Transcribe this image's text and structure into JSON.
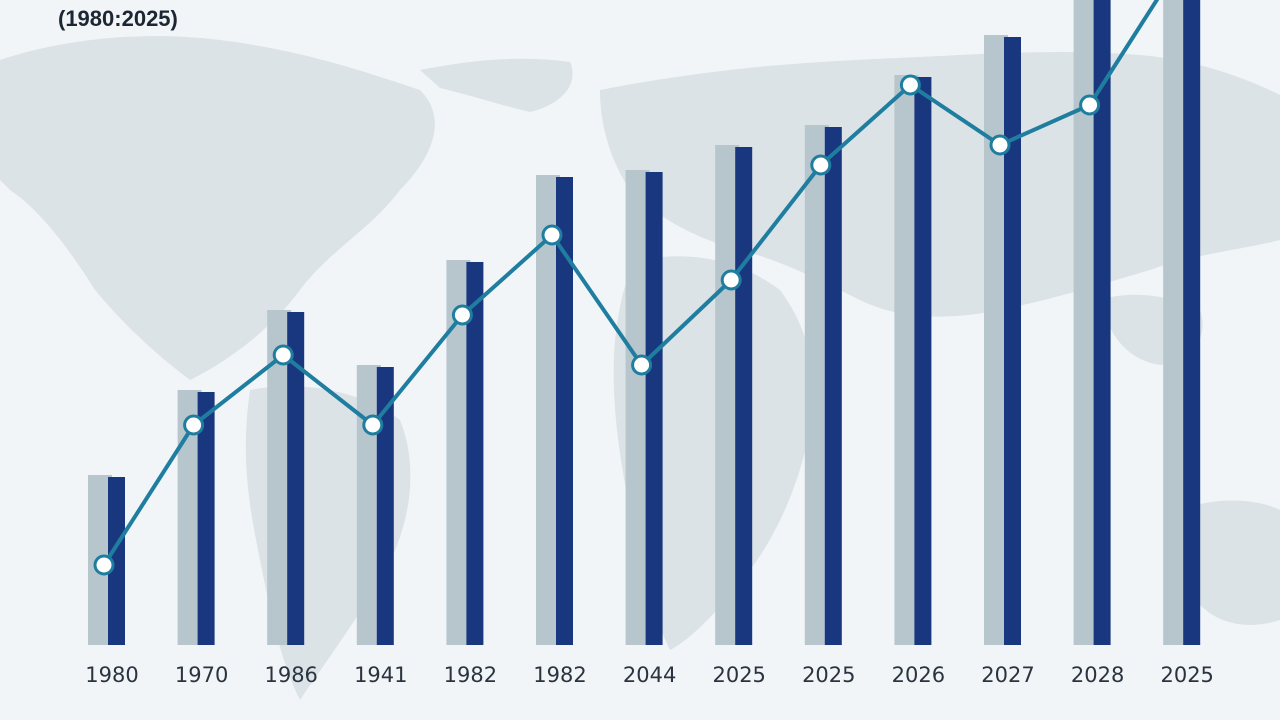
{
  "chart_data": {
    "type": "bar",
    "title": "",
    "subtitle": "(1980:2025)",
    "xlabel": "",
    "ylabel": "",
    "categories": [
      "1980",
      "1970",
      "1986",
      "1941",
      "1982",
      "1982",
      "2044",
      "2025",
      "2025",
      "2026",
      "2027",
      "2028",
      "2025"
    ],
    "series": [
      {
        "type": "bar",
        "style": "light",
        "values": [
          170,
          255,
          335,
          280,
          385,
          470,
          475,
          500,
          520,
          570,
          610,
          650,
          680
        ]
      },
      {
        "type": "bar",
        "style": "dark",
        "values": [
          168,
          253,
          333,
          278,
          383,
          468,
          473,
          498,
          518,
          568,
          608,
          648,
          680
        ]
      },
      {
        "type": "line",
        "values": [
          80,
          220,
          290,
          220,
          330,
          410,
          280,
          365,
          480,
          560,
          500,
          540,
          680
        ]
      }
    ],
    "ylim": [
      0,
      660
    ],
    "grid": false,
    "legend": "none",
    "background": "world map",
    "colors": {
      "bar_light": "#b7c5cd",
      "bar_dark": "#19377f",
      "line": "#1f7ea0",
      "marker_fill": "#ffffff",
      "map": "#c9d4da",
      "background": "#f2f5f7"
    }
  }
}
